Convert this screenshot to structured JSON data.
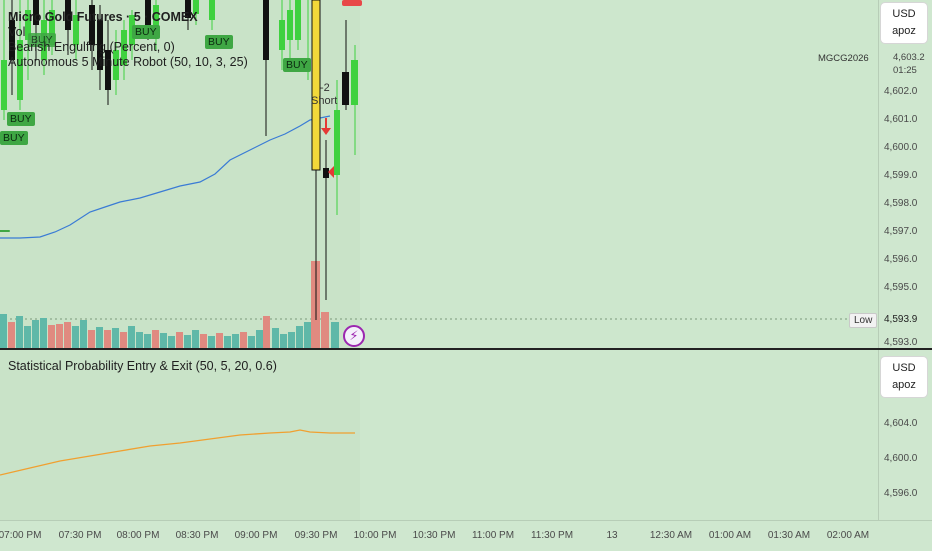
{
  "main_pane": {
    "legend": {
      "title": "Micro Gold Futures · 5 · COMEX",
      "vol": "Vol",
      "indicator_1": "Bearish Engulfing (Percent, 0)",
      "indicator_2": "Autonomous 5 Minute Robot (50, 10, 3, 25)"
    },
    "currency": {
      "code": "USD",
      "unit": "apoz"
    },
    "price_axis": [
      "4,602.0",
      "4,601.0",
      "4,600.0",
      "4,599.0",
      "4,598.0",
      "4,597.0",
      "4,596.0",
      "4,595.0",
      "4,593.0"
    ],
    "last_price": "4,603.2",
    "countdown": "01:25",
    "symbol_tag": "MGCG2026",
    "low_tag": {
      "label": "Low",
      "value": "4,593.9"
    },
    "signals": {
      "buy": "BUY",
      "short": "Short",
      "short_qty": "-2"
    }
  },
  "sub_pane": {
    "legend": "Statistical Probability Entry & Exit (50, 5, 20, 0.6)",
    "currency": {
      "code": "USD",
      "unit": "apoz"
    },
    "price_axis": [
      "4,604.0",
      "4,600.0",
      "4,596.0"
    ]
  },
  "time_axis": [
    "07:00 PM",
    "07:30 PM",
    "08:00 PM",
    "08:30 PM",
    "09:00 PM",
    "09:30 PM",
    "10:00 PM",
    "10:30 PM",
    "11:00 PM",
    "11:30 PM",
    "13",
    "12:30 AM",
    "01:00 AM",
    "01:30 AM",
    "02:00 AM"
  ],
  "colors": {
    "bull": "#3fd13f",
    "bear": "#111111",
    "ma_line": "#3a7bd5",
    "sub_line": "#f0a030",
    "vol_bull": "#5fb8a8",
    "vol_bear": "#e08a80",
    "bolt": "#9c27b0",
    "highlight": "#f2d83a"
  }
}
